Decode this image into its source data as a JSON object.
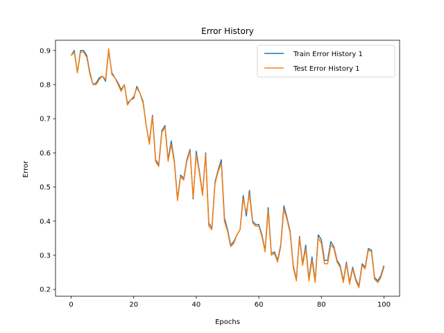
{
  "chart_data": {
    "type": "line",
    "title": "Error History",
    "xlabel": "Epochs",
    "ylabel": "Error",
    "xlim": [
      -5,
      105
    ],
    "ylim": [
      0.18,
      0.93
    ],
    "x_ticks": [
      0,
      20,
      40,
      60,
      80,
      100
    ],
    "y_ticks": [
      0.2,
      0.3,
      0.4,
      0.5,
      0.6,
      0.7,
      0.8,
      0.9
    ],
    "grid": false,
    "legend_position": "top-right",
    "series": [
      {
        "name": "Train Error History 1",
        "color": "#1f77b4",
        "x": [
          0,
          1,
          2,
          3,
          4,
          5,
          6,
          7,
          8,
          9,
          10,
          11,
          12,
          13,
          14,
          15,
          16,
          17,
          18,
          19,
          20,
          21,
          22,
          23,
          24,
          25,
          26,
          27,
          28,
          29,
          30,
          31,
          32,
          33,
          34,
          35,
          36,
          37,
          38,
          39,
          40,
          41,
          42,
          43,
          44,
          45,
          46,
          47,
          48,
          49,
          50,
          51,
          52,
          53,
          54,
          55,
          56,
          57,
          58,
          59,
          60,
          61,
          62,
          63,
          64,
          65,
          66,
          67,
          68,
          69,
          70,
          71,
          72,
          73,
          74,
          75,
          76,
          77,
          78,
          79,
          80,
          81,
          82,
          83,
          84,
          85,
          86,
          87,
          88,
          89,
          90,
          91,
          92,
          93,
          94,
          95,
          96,
          97,
          98,
          99,
          100
        ],
        "y": [
          0.885,
          0.9,
          0.835,
          0.9,
          0.9,
          0.885,
          0.835,
          0.8,
          0.805,
          0.82,
          0.825,
          0.81,
          0.9,
          0.835,
          0.82,
          0.805,
          0.785,
          0.8,
          0.745,
          0.755,
          0.76,
          0.795,
          0.775,
          0.75,
          0.68,
          0.63,
          0.71,
          0.58,
          0.565,
          0.665,
          0.68,
          0.58,
          0.635,
          0.575,
          0.465,
          0.535,
          0.525,
          0.58,
          0.61,
          0.465,
          0.605,
          0.545,
          0.48,
          0.6,
          0.395,
          0.38,
          0.515,
          0.55,
          0.58,
          0.41,
          0.375,
          0.33,
          0.34,
          0.36,
          0.375,
          0.475,
          0.415,
          0.49,
          0.4,
          0.39,
          0.39,
          0.36,
          0.315,
          0.44,
          0.305,
          0.31,
          0.285,
          0.33,
          0.445,
          0.41,
          0.37,
          0.27,
          0.23,
          0.355,
          0.275,
          0.33,
          0.23,
          0.295,
          0.225,
          0.36,
          0.345,
          0.285,
          0.285,
          0.34,
          0.325,
          0.285,
          0.27,
          0.225,
          0.28,
          0.22,
          0.265,
          0.23,
          0.21,
          0.275,
          0.265,
          0.32,
          0.315,
          0.235,
          0.225,
          0.24,
          0.27
        ]
      },
      {
        "name": "Test Error History 1",
        "color": "#ff7f0e",
        "x": [
          0,
          1,
          2,
          3,
          4,
          5,
          6,
          7,
          8,
          9,
          10,
          11,
          12,
          13,
          14,
          15,
          16,
          17,
          18,
          19,
          20,
          21,
          22,
          23,
          24,
          25,
          26,
          27,
          28,
          29,
          30,
          31,
          32,
          33,
          34,
          35,
          36,
          37,
          38,
          39,
          40,
          41,
          42,
          43,
          44,
          45,
          46,
          47,
          48,
          49,
          50,
          51,
          52,
          53,
          54,
          55,
          56,
          57,
          58,
          59,
          60,
          61,
          62,
          63,
          64,
          65,
          66,
          67,
          68,
          69,
          70,
          71,
          72,
          73,
          74,
          75,
          76,
          77,
          78,
          79,
          80,
          81,
          82,
          83,
          84,
          85,
          86,
          87,
          88,
          89,
          90,
          91,
          92,
          93,
          94,
          95,
          96,
          97,
          98,
          99,
          100
        ],
        "y": [
          0.885,
          0.895,
          0.835,
          0.895,
          0.895,
          0.88,
          0.83,
          0.8,
          0.8,
          0.815,
          0.825,
          0.815,
          0.905,
          0.83,
          0.82,
          0.8,
          0.78,
          0.8,
          0.74,
          0.755,
          0.765,
          0.79,
          0.775,
          0.745,
          0.68,
          0.625,
          0.705,
          0.575,
          0.56,
          0.66,
          0.675,
          0.575,
          0.625,
          0.57,
          0.46,
          0.53,
          0.52,
          0.575,
          0.605,
          0.47,
          0.595,
          0.54,
          0.475,
          0.595,
          0.385,
          0.375,
          0.51,
          0.545,
          0.57,
          0.4,
          0.37,
          0.325,
          0.335,
          0.36,
          0.375,
          0.465,
          0.425,
          0.48,
          0.395,
          0.385,
          0.385,
          0.355,
          0.31,
          0.43,
          0.3,
          0.305,
          0.28,
          0.325,
          0.435,
          0.405,
          0.365,
          0.265,
          0.225,
          0.35,
          0.27,
          0.32,
          0.225,
          0.285,
          0.22,
          0.35,
          0.335,
          0.275,
          0.275,
          0.33,
          0.32,
          0.28,
          0.265,
          0.22,
          0.275,
          0.215,
          0.26,
          0.225,
          0.205,
          0.27,
          0.26,
          0.315,
          0.31,
          0.23,
          0.22,
          0.235,
          0.265
        ]
      }
    ]
  }
}
